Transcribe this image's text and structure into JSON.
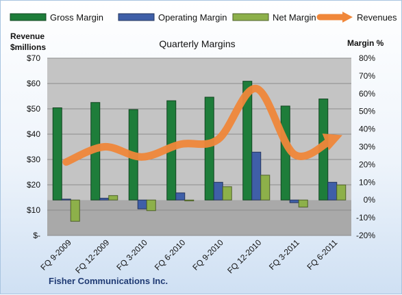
{
  "chart_data": {
    "type": "bar",
    "title": "Quarterly Margins",
    "company": "Fisher Communications Inc.",
    "categories": [
      "FQ 9-2009",
      "FQ 12-2009",
      "FQ 3-2010",
      "FQ 6-2010",
      "FQ 9-2010",
      "FQ 12-2010",
      "FQ 3-2011",
      "FQ 6-2011"
    ],
    "left_axis": {
      "label_line1": "Revenue",
      "label_line2": "$millions",
      "range": [
        0,
        70
      ],
      "ticks": [
        "$-",
        "$10",
        "$20",
        "$30",
        "$40",
        "$50",
        "$60",
        "$70"
      ]
    },
    "right_axis": {
      "label": "Margin %",
      "range": [
        -20,
        80
      ],
      "ticks": [
        "-20%",
        "-10%",
        "0%",
        "10%",
        "20%",
        "30%",
        "40%",
        "50%",
        "60%",
        "70%",
        "80%"
      ]
    },
    "series": [
      {
        "name": "Gross Margin",
        "axis": "right",
        "kind": "bar",
        "color": "#1e7d3a",
        "values": [
          52,
          55,
          51,
          56,
          58,
          67,
          53,
          57
        ]
      },
      {
        "name": "Operating Margin",
        "axis": "right",
        "kind": "bar",
        "color": "#3f5fa8",
        "values": [
          0.5,
          1,
          -5,
          4,
          10,
          27,
          -1.5,
          10
        ]
      },
      {
        "name": "Net Margin",
        "axis": "right",
        "kind": "bar",
        "color": "#8db04a",
        "values": [
          -12,
          2.5,
          -6,
          -0.5,
          7.5,
          14,
          -4,
          8.5
        ]
      },
      {
        "name": "Revenues",
        "axis": "left",
        "kind": "line",
        "color": "#f0873a",
        "values": [
          29,
          35,
          31,
          36,
          38,
          58,
          32,
          38
        ]
      }
    ],
    "grid": true,
    "legend_position": "top"
  }
}
